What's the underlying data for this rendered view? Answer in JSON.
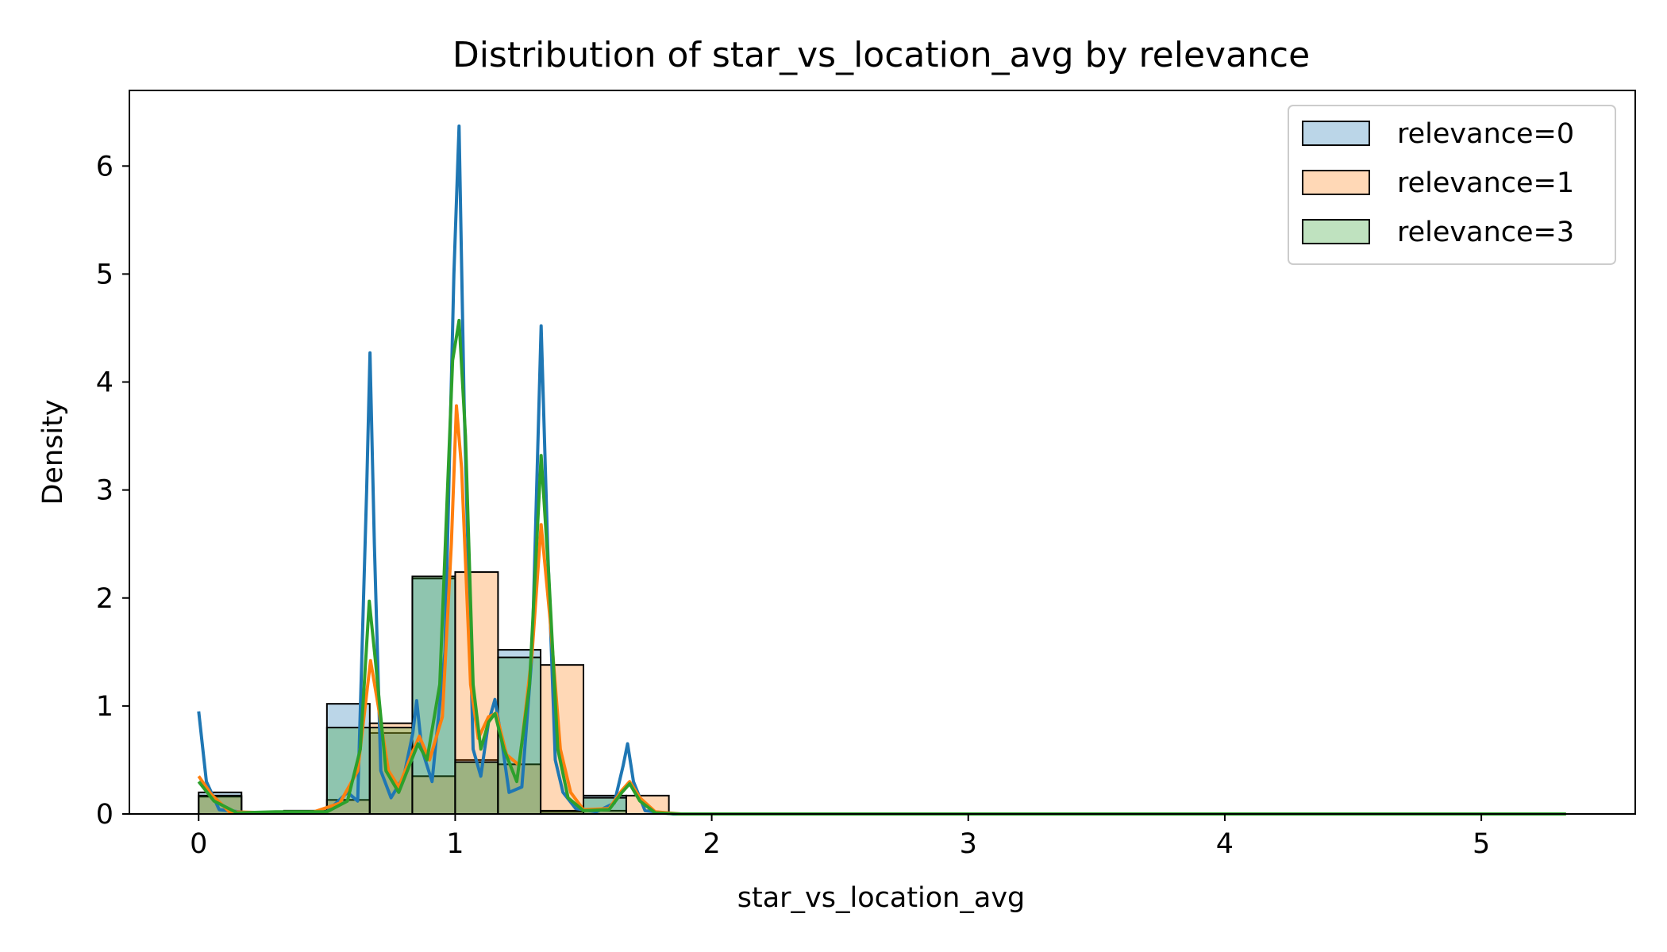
{
  "chart_data": {
    "type": "histogram",
    "title": "Distribution of star_vs_location_avg by relevance",
    "xlabel": "star_vs_location_avg",
    "ylabel": "Density",
    "xlim": [
      -0.27,
      5.6
    ],
    "ylim": [
      0,
      6.7
    ],
    "x_ticks": [
      0,
      1,
      2,
      3,
      4,
      5
    ],
    "y_ticks": [
      0,
      1,
      2,
      3,
      4,
      5,
      6
    ],
    "grid": false,
    "legend_position": "top-right",
    "bin_width": 0.167,
    "series": [
      {
        "name": "relevance=0",
        "fill": "#1f77b4",
        "line_color": "#1f77b4",
        "bins": [
          {
            "x0": 0.0,
            "x1": 0.167,
            "h": 0.2
          },
          {
            "x0": 0.167,
            "x1": 0.333,
            "h": 0.02
          },
          {
            "x0": 0.333,
            "x1": 0.5,
            "h": 0.03
          },
          {
            "x0": 0.5,
            "x1": 0.667,
            "h": 1.02
          },
          {
            "x0": 0.667,
            "x1": 0.833,
            "h": 0.75
          },
          {
            "x0": 0.833,
            "x1": 1.0,
            "h": 2.18
          },
          {
            "x0": 1.0,
            "x1": 1.167,
            "h": 0.5
          },
          {
            "x0": 1.167,
            "x1": 1.333,
            "h": 1.52
          },
          {
            "x0": 1.333,
            "x1": 1.5,
            "h": 0.02
          },
          {
            "x0": 1.5,
            "x1": 1.667,
            "h": 0.17
          }
        ],
        "kde": [
          [
            0.0,
            0.95
          ],
          [
            0.03,
            0.3
          ],
          [
            0.08,
            0.04
          ],
          [
            0.2,
            0.01
          ],
          [
            0.5,
            0.02
          ],
          [
            0.58,
            0.2
          ],
          [
            0.62,
            0.12
          ],
          [
            0.655,
            3.0
          ],
          [
            0.668,
            4.27
          ],
          [
            0.685,
            2.5
          ],
          [
            0.71,
            0.4
          ],
          [
            0.75,
            0.15
          ],
          [
            0.8,
            0.35
          ],
          [
            0.835,
            0.75
          ],
          [
            0.85,
            1.05
          ],
          [
            0.87,
            0.6
          ],
          [
            0.91,
            0.3
          ],
          [
            0.96,
            1.5
          ],
          [
            0.995,
            5.0
          ],
          [
            1.015,
            6.37
          ],
          [
            1.035,
            3.8
          ],
          [
            1.07,
            0.6
          ],
          [
            1.1,
            0.35
          ],
          [
            1.13,
            0.85
          ],
          [
            1.155,
            1.06
          ],
          [
            1.18,
            0.7
          ],
          [
            1.21,
            0.2
          ],
          [
            1.26,
            0.25
          ],
          [
            1.3,
            1.5
          ],
          [
            1.335,
            4.52
          ],
          [
            1.36,
            2.5
          ],
          [
            1.39,
            0.5
          ],
          [
            1.42,
            0.2
          ],
          [
            1.47,
            0.05
          ],
          [
            1.55,
            0.02
          ],
          [
            1.62,
            0.1
          ],
          [
            1.655,
            0.45
          ],
          [
            1.672,
            0.65
          ],
          [
            1.695,
            0.3
          ],
          [
            1.74,
            0.03
          ],
          [
            1.85,
            0.0
          ],
          [
            5.33,
            0.0
          ]
        ]
      },
      {
        "name": "relevance=1",
        "fill": "#ff7f0e",
        "line_color": "#ff7f0e",
        "bins": [
          {
            "x0": 0.0,
            "x1": 0.167,
            "h": 0.16
          },
          {
            "x0": 0.167,
            "x1": 0.333,
            "h": 0.02
          },
          {
            "x0": 0.333,
            "x1": 0.5,
            "h": 0.02
          },
          {
            "x0": 0.5,
            "x1": 0.667,
            "h": 0.13
          },
          {
            "x0": 0.667,
            "x1": 0.833,
            "h": 0.84
          },
          {
            "x0": 0.833,
            "x1": 1.0,
            "h": 0.35
          },
          {
            "x0": 1.0,
            "x1": 1.167,
            "h": 2.24
          },
          {
            "x0": 1.167,
            "x1": 1.333,
            "h": 0.46
          },
          {
            "x0": 1.333,
            "x1": 1.5,
            "h": 1.38
          },
          {
            "x0": 1.5,
            "x1": 1.667,
            "h": 0.03
          },
          {
            "x0": 1.667,
            "x1": 1.833,
            "h": 0.17
          }
        ],
        "kde": [
          [
            0.0,
            0.35
          ],
          [
            0.05,
            0.18
          ],
          [
            0.12,
            0.02
          ],
          [
            0.3,
            0.01
          ],
          [
            0.45,
            0.02
          ],
          [
            0.55,
            0.1
          ],
          [
            0.62,
            0.4
          ],
          [
            0.67,
            1.42
          ],
          [
            0.7,
            1.0
          ],
          [
            0.74,
            0.4
          ],
          [
            0.78,
            0.25
          ],
          [
            0.83,
            0.55
          ],
          [
            0.86,
            0.72
          ],
          [
            0.9,
            0.5
          ],
          [
            0.95,
            0.9
          ],
          [
            0.985,
            2.5
          ],
          [
            1.005,
            3.78
          ],
          [
            1.025,
            3.2
          ],
          [
            1.06,
            1.2
          ],
          [
            1.09,
            0.7
          ],
          [
            1.13,
            0.9
          ],
          [
            1.16,
            0.93
          ],
          [
            1.2,
            0.55
          ],
          [
            1.25,
            0.45
          ],
          [
            1.3,
            1.5
          ],
          [
            1.335,
            2.68
          ],
          [
            1.37,
            1.8
          ],
          [
            1.41,
            0.6
          ],
          [
            1.45,
            0.2
          ],
          [
            1.5,
            0.04
          ],
          [
            1.6,
            0.05
          ],
          [
            1.65,
            0.22
          ],
          [
            1.68,
            0.3
          ],
          [
            1.72,
            0.15
          ],
          [
            1.78,
            0.02
          ],
          [
            1.88,
            0.0
          ],
          [
            5.33,
            0.0
          ]
        ]
      },
      {
        "name": "relevance=3",
        "fill": "#2ca02c",
        "line_color": "#2ca02c",
        "bins": [
          {
            "x0": 0.0,
            "x1": 0.167,
            "h": 0.17
          },
          {
            "x0": 0.167,
            "x1": 0.333,
            "h": 0.02
          },
          {
            "x0": 0.333,
            "x1": 0.5,
            "h": 0.03
          },
          {
            "x0": 0.5,
            "x1": 0.667,
            "h": 0.8
          },
          {
            "x0": 0.667,
            "x1": 0.833,
            "h": 0.8
          },
          {
            "x0": 0.833,
            "x1": 1.0,
            "h": 2.2
          },
          {
            "x0": 1.0,
            "x1": 1.167,
            "h": 0.48
          },
          {
            "x0": 1.167,
            "x1": 1.333,
            "h": 1.45
          },
          {
            "x0": 1.333,
            "x1": 1.5,
            "h": 0.03
          },
          {
            "x0": 1.5,
            "x1": 1.667,
            "h": 0.15
          }
        ],
        "kde": [
          [
            0.0,
            0.3
          ],
          [
            0.06,
            0.12
          ],
          [
            0.15,
            0.01
          ],
          [
            0.3,
            0.02
          ],
          [
            0.4,
            0.02
          ],
          [
            0.5,
            0.02
          ],
          [
            0.58,
            0.12
          ],
          [
            0.63,
            0.6
          ],
          [
            0.665,
            1.97
          ],
          [
            0.69,
            1.4
          ],
          [
            0.73,
            0.4
          ],
          [
            0.78,
            0.2
          ],
          [
            0.83,
            0.5
          ],
          [
            0.855,
            0.65
          ],
          [
            0.89,
            0.5
          ],
          [
            0.94,
            1.2
          ],
          [
            0.99,
            4.2
          ],
          [
            1.015,
            4.57
          ],
          [
            1.04,
            3.5
          ],
          [
            1.07,
            1.2
          ],
          [
            1.1,
            0.6
          ],
          [
            1.13,
            0.85
          ],
          [
            1.155,
            0.93
          ],
          [
            1.19,
            0.6
          ],
          [
            1.24,
            0.3
          ],
          [
            1.29,
            1.2
          ],
          [
            1.335,
            3.32
          ],
          [
            1.365,
            2.2
          ],
          [
            1.4,
            0.6
          ],
          [
            1.44,
            0.15
          ],
          [
            1.5,
            0.03
          ],
          [
            1.6,
            0.04
          ],
          [
            1.65,
            0.2
          ],
          [
            1.68,
            0.28
          ],
          [
            1.72,
            0.12
          ],
          [
            1.78,
            0.01
          ],
          [
            1.88,
            0.0
          ],
          [
            5.33,
            0.0
          ]
        ]
      }
    ]
  }
}
